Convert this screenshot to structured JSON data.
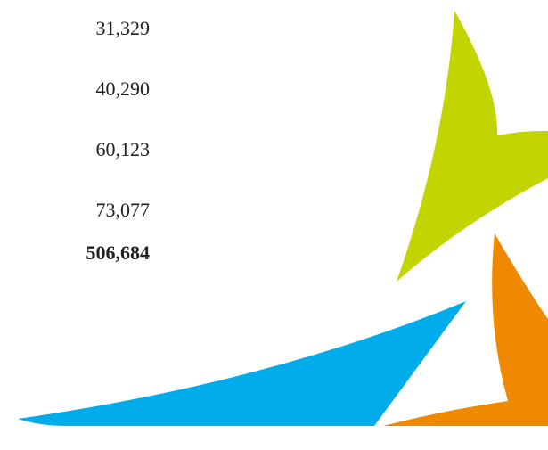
{
  "rows": [
    "31,329",
    "40,290",
    "60,123",
    "73,077"
  ],
  "total": "506,684"
}
